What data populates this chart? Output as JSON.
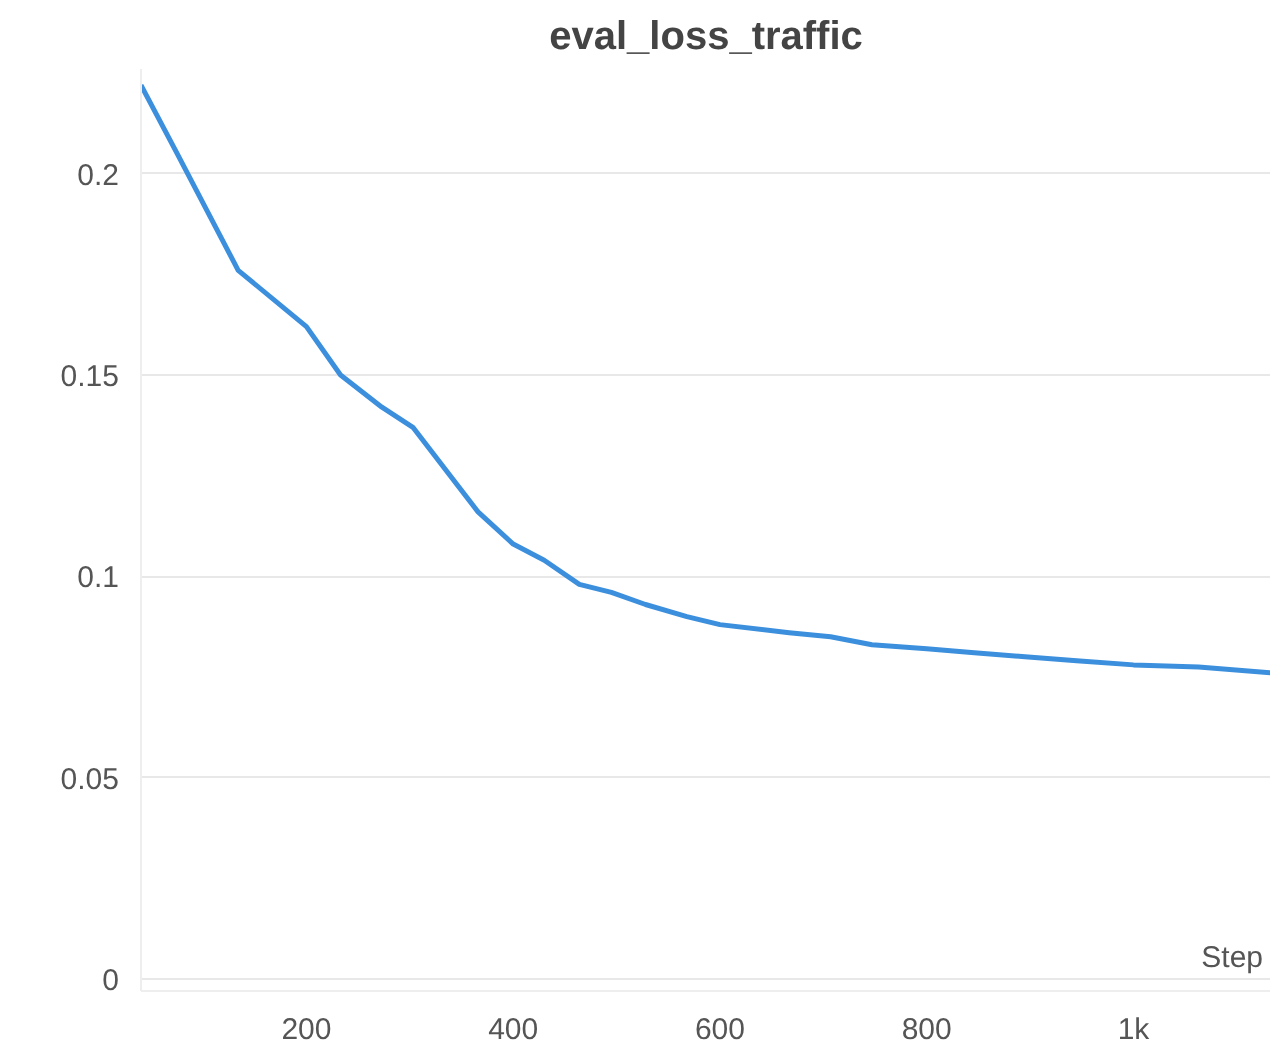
{
  "chart_data": {
    "type": "line",
    "title": "eval_loss_traffic",
    "xlabel": "Step",
    "x": [
      40,
      75,
      134,
      200,
      233,
      273,
      303,
      366,
      400,
      430,
      464,
      495,
      528,
      568,
      600,
      667,
      707,
      747,
      800,
      846,
      895,
      945,
      1000,
      1063,
      1133
    ],
    "series": [
      {
        "color": "#3b8fdd",
        "values": [
          0.222,
          0.205,
          0.176,
          0.162,
          0.15,
          0.142,
          0.137,
          0.116,
          0.108,
          0.104,
          0.098,
          0.096,
          0.093,
          0.09,
          0.088,
          0.086,
          0.085,
          0.083,
          0.082,
          0.081,
          0.08,
          0.079,
          0.078,
          0.0775,
          0.076
        ]
      }
    ],
    "xlim": [
      40,
      1133
    ],
    "xticks": [
      200,
      400,
      600,
      800,
      {
        "value": 1000,
        "label": "1k"
      }
    ],
    "ylim": [
      -0.003,
      0.226
    ],
    "yticks": [
      0,
      0.05,
      0.1,
      0.15,
      0.2
    ],
    "grid": "y",
    "marker": "none",
    "line_style": "solid"
  }
}
